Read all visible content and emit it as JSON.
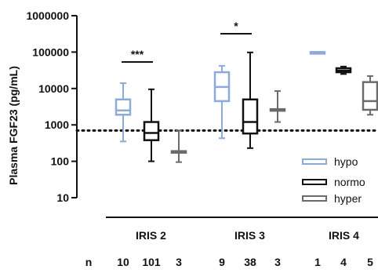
{
  "chart_data": {
    "type": "box",
    "ylabel": "Plasma FGF23 (pg/mL)",
    "y_scale": "log",
    "ylim": [
      10,
      1000000
    ],
    "yticks": [
      "10",
      "100",
      "1000",
      "10000",
      "100000",
      "1000000"
    ],
    "reference_line": 700,
    "groups": [
      {
        "label": "IRIS 2",
        "significance": "***",
        "n": [
          "10",
          "101",
          "3"
        ]
      },
      {
        "label": "IRIS 3",
        "significance": "*",
        "n": [
          "9",
          "38",
          "3"
        ]
      },
      {
        "label": "IRIS 4",
        "significance": "",
        "n": [
          "1",
          "4",
          "5"
        ]
      }
    ],
    "n_label": "n",
    "series": [
      {
        "name": "hypo",
        "color": "#8eaad8",
        "boxes": [
          {
            "group": "IRIS 2",
            "min": 350,
            "q1": 1900,
            "median": 2500,
            "q3": 5000,
            "max": 14000
          },
          {
            "group": "IRIS 3",
            "min": 430,
            "q1": 4500,
            "median": 11000,
            "q3": 28000,
            "max": 42000
          },
          {
            "group": "IRIS 4",
            "min": 100000,
            "q1": 100000,
            "median": 100000,
            "q3": 100000,
            "max": 100000
          }
        ]
      },
      {
        "name": "normo",
        "color": "#111111",
        "boxes": [
          {
            "group": "IRIS 2",
            "min": 100,
            "q1": 380,
            "median": 600,
            "q3": 1200,
            "max": 9500
          },
          {
            "group": "IRIS 3",
            "min": 230,
            "q1": 580,
            "median": 1200,
            "q3": 5000,
            "max": 98000
          },
          {
            "group": "IRIS 4",
            "min": 25000,
            "q1": 28000,
            "median": 31000,
            "q3": 36000,
            "max": 40000
          }
        ]
      },
      {
        "name": "hyper",
        "color": "#6b6b6b",
        "boxes": [
          {
            "group": "IRIS 2",
            "min": 95,
            "q1": 180,
            "median": 185,
            "q3": 190,
            "max": 700
          },
          {
            "group": "IRIS 3",
            "min": 1200,
            "q1": 2500,
            "median": 2600,
            "q3": 2700,
            "max": 8500
          },
          {
            "group": "IRIS 4",
            "min": 1900,
            "q1": 2600,
            "median": 4500,
            "q3": 15000,
            "max": 22000
          }
        ]
      }
    ]
  }
}
